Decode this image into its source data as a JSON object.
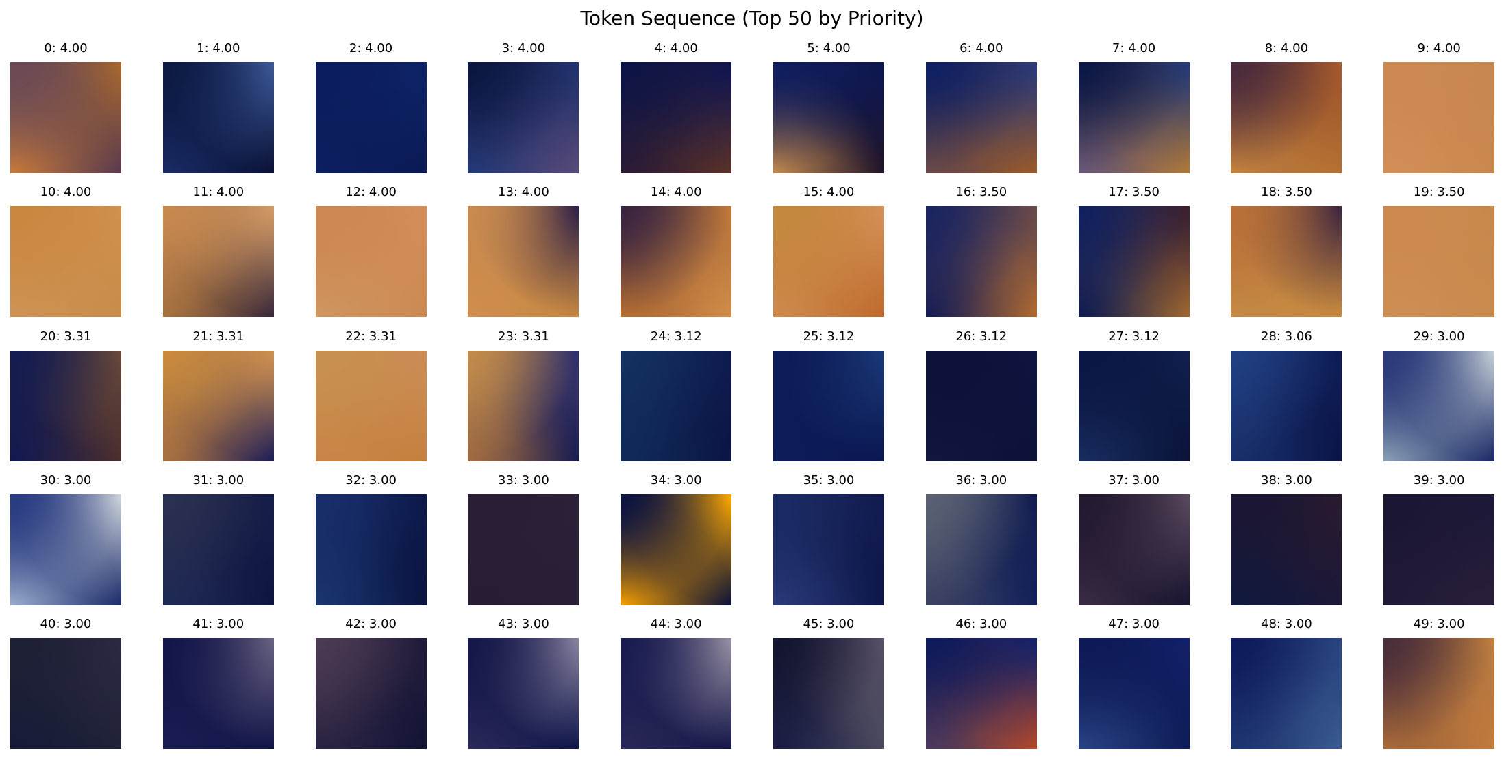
{
  "title": "Token Sequence (Top 50 by Priority)",
  "tokens": [
    {
      "label": "0: 4.00",
      "index": 0,
      "priority": 4.0,
      "colors": [
        "#6b4a55",
        "#a8682e",
        "#c77a3a",
        "#5a3b4e"
      ]
    },
    {
      "label": "1: 4.00",
      "index": 1,
      "priority": 4.0,
      "colors": [
        "#0d1a45",
        "#3d5a9a",
        "#1a2c66",
        "#0a1236"
      ]
    },
    {
      "label": "2: 4.00",
      "index": 2,
      "priority": 4.0,
      "colors": [
        "#0b1d5e",
        "#0e2468",
        "#0c1f60",
        "#0a1a55"
      ]
    },
    {
      "label": "3: 4.00",
      "index": 3,
      "priority": 4.0,
      "colors": [
        "#0c1642",
        "#1f3370",
        "#233a7a",
        "#5a4a78"
      ]
    },
    {
      "label": "4: 4.00",
      "index": 4,
      "priority": 4.0,
      "colors": [
        "#0d1445",
        "#101550",
        "#2a1a35",
        "#5a3228"
      ]
    },
    {
      "label": "5: 4.00",
      "index": 5,
      "priority": 4.0,
      "colors": [
        "#0f1d5e",
        "#0d1750",
        "#c48a4c",
        "#201428"
      ]
    },
    {
      "label": "6: 4.00",
      "index": 6,
      "priority": 4.0,
      "colors": [
        "#0e1f62",
        "#2b3a78",
        "#6a4a48",
        "#9a5a2a"
      ]
    },
    {
      "label": "7: 4.00",
      "index": 7,
      "priority": 4.0,
      "colors": [
        "#0c1746",
        "#243a7a",
        "#6a5a7a",
        "#b07838"
      ]
    },
    {
      "label": "8: 4.00",
      "index": 8,
      "priority": 4.0,
      "colors": [
        "#4a2a3c",
        "#a85a2a",
        "#c8843e",
        "#b47032"
      ]
    },
    {
      "label": "9: 4.00",
      "index": 9,
      "priority": 4.0,
      "colors": [
        "#cc8a52",
        "#c88650",
        "#d28e56",
        "#c9884e"
      ]
    },
    {
      "label": "10: 4.00",
      "index": 10,
      "priority": 4.0,
      "colors": [
        "#c98840",
        "#d0904e",
        "#cf9356",
        "#c98c4a"
      ]
    },
    {
      "label": "11: 4.00",
      "index": 11,
      "priority": 4.0,
      "colors": [
        "#c8894e",
        "#d29a66",
        "#a8723e",
        "#3a2a3a"
      ]
    },
    {
      "label": "12: 4.00",
      "index": 12,
      "priority": 4.0,
      "colors": [
        "#cc8850",
        "#d48e5a",
        "#d09660",
        "#cc8a52"
      ]
    },
    {
      "label": "13: 4.00",
      "index": 13,
      "priority": 4.0,
      "colors": [
        "#c98a4e",
        "#2a1e48",
        "#d08e4e",
        "#c48640"
      ]
    },
    {
      "label": "14: 4.00",
      "index": 14,
      "priority": 4.0,
      "colors": [
        "#3a2540",
        "#c47a38",
        "#b86e30",
        "#d08c48"
      ]
    },
    {
      "label": "15: 4.00",
      "index": 15,
      "priority": 4.0,
      "colors": [
        "#c4883e",
        "#d49058",
        "#ce8a4e",
        "#bf6a2c"
      ]
    },
    {
      "label": "16: 3.50",
      "index": 16,
      "priority": 3.5,
      "colors": [
        "#1a2460",
        "#6a4a4a",
        "#141c55",
        "#b06a30"
      ]
    },
    {
      "label": "17: 3.50",
      "index": 17,
      "priority": 3.5,
      "colors": [
        "#10205e",
        "#3a1e2e",
        "#0e1b50",
        "#a06830"
      ]
    },
    {
      "label": "18: 3.50",
      "index": 18,
      "priority": 3.5,
      "colors": [
        "#b87038",
        "#3a2440",
        "#c58a46",
        "#c8893e"
      ]
    },
    {
      "label": "19: 3.50",
      "index": 19,
      "priority": 3.5,
      "colors": [
        "#cc8a50",
        "#c8884c",
        "#cf8e54",
        "#c98a4e"
      ]
    },
    {
      "label": "20: 3.31",
      "index": 20,
      "priority": 3.31,
      "colors": [
        "#141c50",
        "#6a4a3a",
        "#111850",
        "#4a2e2e"
      ]
    },
    {
      "label": "21: 3.31",
      "index": 21,
      "priority": 3.31,
      "colors": [
        "#c8893e",
        "#cf9050",
        "#a87040",
        "#1e1e58"
      ]
    },
    {
      "label": "22: 3.31",
      "index": 22,
      "priority": 3.31,
      "colors": [
        "#c89050",
        "#cc8c56",
        "#c88448",
        "#c4803e"
      ]
    },
    {
      "label": "23: 3.31",
      "index": 23,
      "priority": 3.31,
      "colors": [
        "#c08a4a",
        "#2a2c70",
        "#a06a40",
        "#1a1c50"
      ]
    },
    {
      "label": "24: 3.12",
      "index": 24,
      "priority": 3.12,
      "colors": [
        "#13305e",
        "#0e1a4c",
        "#102a58",
        "#0b1544"
      ]
    },
    {
      "label": "25: 3.12",
      "index": 25,
      "priority": 3.12,
      "colors": [
        "#0d1c58",
        "#1a3a78",
        "#0d1d5a",
        "#0a1650"
      ]
    },
    {
      "label": "26: 3.12",
      "index": 26,
      "priority": 3.12,
      "colors": [
        "#0d1238",
        "#0e1440",
        "#10163e",
        "#0c1236"
      ]
    },
    {
      "label": "27: 3.12",
      "index": 27,
      "priority": 3.12,
      "colors": [
        "#0c1644",
        "#10204e",
        "#182e60",
        "#0a1238"
      ]
    },
    {
      "label": "28: 3.06",
      "index": 28,
      "priority": 3.06,
      "colors": [
        "#203e80",
        "#0d1a52",
        "#182f6a",
        "#0b1446"
      ]
    },
    {
      "label": "29: 3.00",
      "index": 29,
      "priority": 3.0,
      "colors": [
        "#2a3a7a",
        "#c8d2d8",
        "#8aa0b6",
        "#1c2a66"
      ]
    },
    {
      "label": "30: 3.00",
      "index": 30,
      "priority": 3.0,
      "colors": [
        "#2a3c82",
        "#d0d6dc",
        "#9aaccc",
        "#1c2c6a"
      ]
    },
    {
      "label": "31: 3.00",
      "index": 31,
      "priority": 3.0,
      "colors": [
        "#2a3050",
        "#141c48",
        "#1e2a56",
        "#0e1440"
      ]
    },
    {
      "label": "32: 3.00",
      "index": 32,
      "priority": 3.0,
      "colors": [
        "#182e6a",
        "#0c1848",
        "#1a3670",
        "#0a1440"
      ]
    },
    {
      "label": "33: 3.00",
      "index": 33,
      "priority": 3.0,
      "colors": [
        "#2a1e34",
        "#2c2038",
        "#281c32",
        "#2a1e36"
      ]
    },
    {
      "label": "34: 3.00",
      "index": 34,
      "priority": 3.0,
      "colors": [
        "#0e1440",
        "#ffaa00",
        "#f5a000",
        "#0c1238"
      ]
    },
    {
      "label": "35: 3.00",
      "index": 35,
      "priority": 3.0,
      "colors": [
        "#1a2a62",
        "#121a4e",
        "#2a3a7a",
        "#0e1648"
      ]
    },
    {
      "label": "36: 3.00",
      "index": 36,
      "priority": 3.0,
      "colors": [
        "#5a6072",
        "#0e1a4e",
        "#3a4060",
        "#13205a"
      ]
    },
    {
      "label": "37: 3.00",
      "index": 37,
      "priority": 3.0,
      "colors": [
        "#241a30",
        "#5a4a5e",
        "#3a2c44",
        "#1a1430"
      ]
    },
    {
      "label": "38: 3.00",
      "index": 38,
      "priority": 3.0,
      "colors": [
        "#1a1634",
        "#2a1a2e",
        "#101a3e",
        "#1c1838"
      ]
    },
    {
      "label": "39: 3.00",
      "index": 39,
      "priority": 3.0,
      "colors": [
        "#1a1634",
        "#1c1838",
        "#201a38",
        "#2a1e3a"
      ]
    },
    {
      "label": "40: 3.00",
      "index": 40,
      "priority": 3.0,
      "colors": [
        "#1e2036",
        "#2a2a42",
        "#161a38",
        "#202238"
      ]
    },
    {
      "label": "41: 3.00",
      "index": 41,
      "priority": 3.0,
      "colors": [
        "#14164a",
        "#6a6482",
        "#1a1e52",
        "#121548"
      ]
    },
    {
      "label": "42: 3.00",
      "index": 42,
      "priority": 3.0,
      "colors": [
        "#4a3a52",
        "#1e1838",
        "#2a2242",
        "#121436"
      ]
    },
    {
      "label": "43: 3.00",
      "index": 43,
      "priority": 3.0,
      "colors": [
        "#16184a",
        "#8a84a0",
        "#2a2a5a",
        "#10164a"
      ]
    },
    {
      "label": "44: 3.00",
      "index": 44,
      "priority": 3.0,
      "colors": [
        "#1a1c50",
        "#9a92a4",
        "#2a2858",
        "#16184a"
      ]
    },
    {
      "label": "45: 3.00",
      "index": 45,
      "priority": 3.0,
      "colors": [
        "#121430",
        "#5a5268",
        "#1a1c46",
        "#4a4a5e"
      ]
    },
    {
      "label": "46: 3.00",
      "index": 46,
      "priority": 3.0,
      "colors": [
        "#0e1a5a",
        "#13226a",
        "#4a3a5e",
        "#b2482a"
      ]
    },
    {
      "label": "47: 3.00",
      "index": 47,
      "priority": 3.0,
      "colors": [
        "#0e1a56",
        "#12206a",
        "#2a4486",
        "#0e1c56"
      ]
    },
    {
      "label": "48: 3.00",
      "index": 48,
      "priority": 3.0,
      "colors": [
        "#0e1a5c",
        "#2a4680",
        "#1c3470",
        "#3a5a90"
      ]
    },
    {
      "label": "49: 3.00",
      "index": 49,
      "priority": 3.0,
      "colors": [
        "#4a2e3a",
        "#c28040",
        "#a86a3a",
        "#c07a3c"
      ]
    }
  ]
}
